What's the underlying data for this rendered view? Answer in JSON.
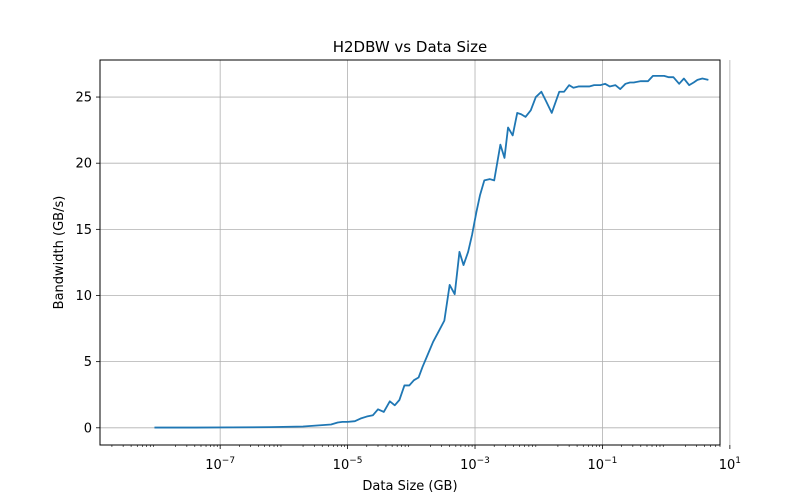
{
  "chart_data": {
    "type": "line",
    "title": "H2DBW vs Data Size",
    "xlabel": "Data Size (GB)",
    "ylabel": "Bandwidth (GB/s)",
    "xscale": "log",
    "xlim": [
      1.3e-09,
      7.0
    ],
    "ylim": [
      -1.3,
      27.8
    ],
    "grid": true,
    "legend": "none",
    "line_color": "#1f77b4",
    "x_ticks": [
      {
        "value": 1e-07,
        "base": "10",
        "exp": "−7"
      },
      {
        "value": 1e-05,
        "base": "10",
        "exp": "−5"
      },
      {
        "value": 0.001,
        "base": "10",
        "exp": "−3"
      },
      {
        "value": 0.1,
        "base": "10",
        "exp": "−1"
      },
      {
        "value": 10,
        "base": "10",
        "exp": "1"
      }
    ],
    "y_ticks": [
      {
        "value": 0,
        "label": "0"
      },
      {
        "value": 5,
        "label": "5"
      },
      {
        "value": 10,
        "label": "10"
      },
      {
        "value": 15,
        "label": "15"
      },
      {
        "value": 20,
        "label": "20"
      },
      {
        "value": 25,
        "label": "25"
      }
    ],
    "series": [
      {
        "x": [
          9.3e-09,
          4e-08,
          1.5e-07,
          6e-07,
          2e-06,
          4e-06,
          5.5e-06,
          7e-06,
          8.3e-06,
          1e-05,
          1.3e-05,
          1.6e-05,
          2e-05,
          2.5e-05,
          3e-05,
          3.7e-05,
          4.6e-05,
          5.5e-05,
          6.5e-05,
          7.8e-05,
          9.3e-05,
          0.00011,
          0.00013,
          0.00015,
          0.00018,
          0.00022,
          0.00027,
          0.00033,
          0.0004,
          0.00048,
          0.00057,
          0.00066,
          0.00078,
          0.0009,
          0.00105,
          0.0012,
          0.0014,
          0.0017,
          0.002,
          0.0025,
          0.0029,
          0.0033,
          0.0039,
          0.0046,
          0.0053,
          0.0062,
          0.0075,
          0.009,
          0.011,
          0.013,
          0.016,
          0.021,
          0.025,
          0.03,
          0.035,
          0.042,
          0.052,
          0.062,
          0.074,
          0.093,
          0.11,
          0.13,
          0.16,
          0.19,
          0.23,
          0.27,
          0.31,
          0.4,
          0.52,
          0.62,
          0.74,
          0.93,
          1.1,
          1.3,
          1.6,
          1.9,
          2.3,
          2.7,
          3.1,
          3.7,
          4.6
        ],
        "y": [
          0.02,
          0.02,
          0.03,
          0.05,
          0.1,
          0.2,
          0.25,
          0.4,
          0.45,
          0.45,
          0.5,
          0.7,
          0.85,
          0.95,
          1.4,
          1.2,
          2.0,
          1.7,
          2.1,
          3.2,
          3.2,
          3.6,
          3.8,
          4.6,
          5.5,
          6.5,
          7.3,
          8.1,
          10.8,
          10.1,
          13.3,
          12.3,
          13.3,
          14.6,
          16.3,
          17.6,
          18.7,
          18.8,
          18.7,
          21.4,
          20.4,
          22.7,
          22.1,
          23.8,
          23.7,
          23.5,
          24.0,
          25.0,
          25.4,
          24.7,
          23.8,
          25.4,
          25.4,
          25.9,
          25.7,
          25.8,
          25.8,
          25.8,
          25.9,
          25.9,
          26.0,
          25.8,
          25.9,
          25.6,
          26.0,
          26.1,
          26.1,
          26.2,
          26.2,
          26.6,
          26.6,
          26.6,
          26.5,
          26.5,
          26.0,
          26.4,
          25.9,
          26.1,
          26.3,
          26.4,
          26.3
        ]
      }
    ]
  }
}
